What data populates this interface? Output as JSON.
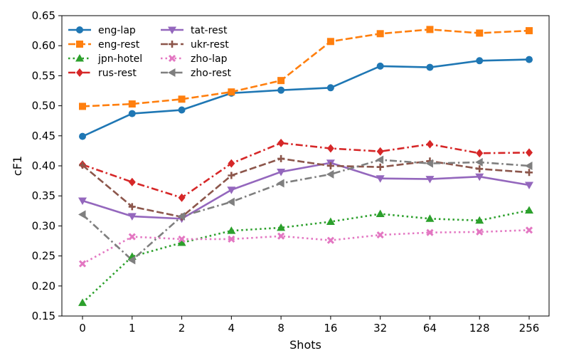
{
  "chart_data": {
    "type": "line",
    "title": "",
    "xlabel": "Shots",
    "ylabel": "cF1",
    "categories": [
      "0",
      "1",
      "2",
      "4",
      "8",
      "16",
      "32",
      "64",
      "128",
      "256"
    ],
    "ylim": [
      0.15,
      0.65
    ],
    "yticks": [
      "0.15",
      "0.20",
      "0.25",
      "0.30",
      "0.35",
      "0.40",
      "0.45",
      "0.50",
      "0.55",
      "0.60",
      "0.65"
    ],
    "grid": false,
    "legend_position": "top-left",
    "series": [
      {
        "name": "eng-lap",
        "color": "#1f77b4",
        "dash": "solid",
        "marker": "circle",
        "values": [
          0.449,
          0.487,
          0.493,
          0.521,
          0.526,
          0.53,
          0.566,
          0.564,
          0.575,
          0.577
        ]
      },
      {
        "name": "eng-rest",
        "color": "#ff7f0e",
        "dash": "dashed",
        "marker": "square",
        "values": [
          0.499,
          0.503,
          0.511,
          0.523,
          0.542,
          0.607,
          0.62,
          0.627,
          0.621,
          0.625
        ]
      },
      {
        "name": "jpn-hotel",
        "color": "#2ca02c",
        "dash": "dotted",
        "marker": "triangle-up",
        "values": [
          0.172,
          0.249,
          0.272,
          0.292,
          0.297,
          0.307,
          0.32,
          0.312,
          0.309,
          0.326
        ]
      },
      {
        "name": "rus-rest",
        "color": "#d62728",
        "dash": "dashdot",
        "marker": "diamond",
        "values": [
          0.402,
          0.373,
          0.347,
          0.404,
          0.438,
          0.429,
          0.424,
          0.436,
          0.421,
          0.422
        ]
      },
      {
        "name": "tat-rest",
        "color": "#9467bd",
        "dash": "solid",
        "marker": "triangle-down",
        "values": [
          0.342,
          0.316,
          0.312,
          0.36,
          0.39,
          0.405,
          0.379,
          0.378,
          0.382,
          0.368
        ]
      },
      {
        "name": "ukr-rest",
        "color": "#8c564b",
        "dash": "dashed",
        "marker": "plus",
        "values": [
          0.401,
          0.332,
          0.315,
          0.384,
          0.412,
          0.4,
          0.398,
          0.408,
          0.395,
          0.389
        ]
      },
      {
        "name": "zho-lap",
        "color": "#e377c2",
        "dash": "dotted",
        "marker": "x",
        "values": [
          0.237,
          0.282,
          0.278,
          0.278,
          0.283,
          0.276,
          0.285,
          0.289,
          0.29,
          0.293
        ]
      },
      {
        "name": "zho-rest",
        "color": "#7f7f7f",
        "dash": "dashdot",
        "marker": "triangle-left",
        "values": [
          0.319,
          0.243,
          0.316,
          0.34,
          0.371,
          0.386,
          0.41,
          0.404,
          0.406,
          0.4
        ]
      }
    ]
  }
}
